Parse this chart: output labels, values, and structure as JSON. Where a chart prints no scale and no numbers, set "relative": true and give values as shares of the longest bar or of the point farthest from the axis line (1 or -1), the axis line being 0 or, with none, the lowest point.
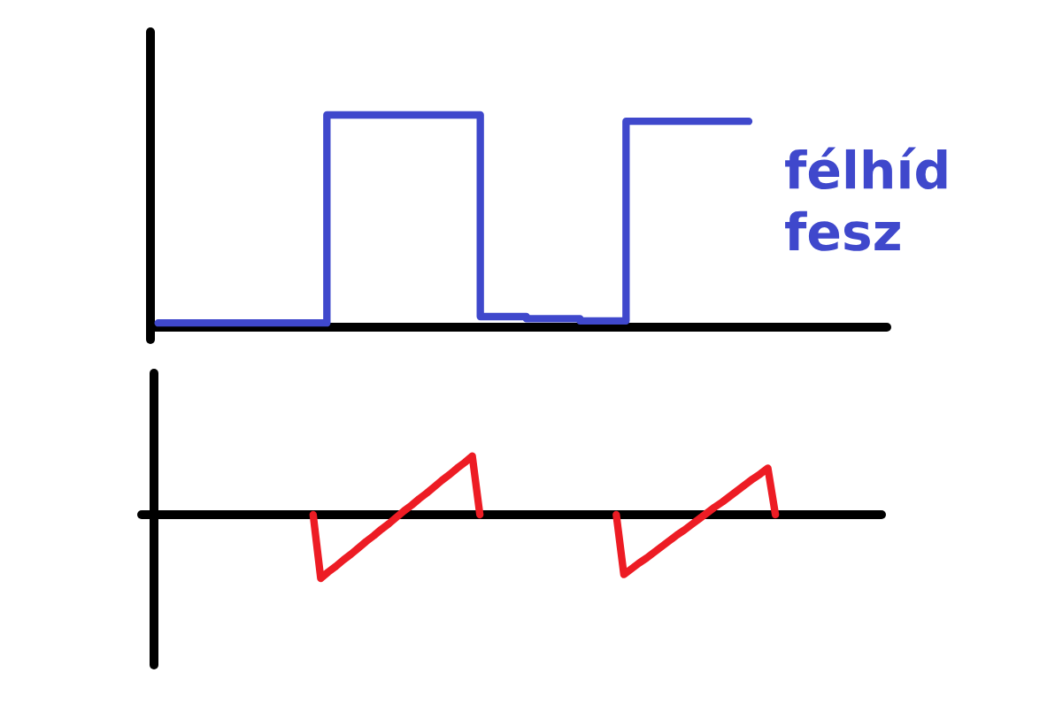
{
  "chart_data": [
    {
      "type": "step",
      "relative": true,
      "categories": [
        null,
        null,
        null,
        null,
        null,
        null,
        null,
        null,
        null,
        null,
        null,
        null,
        null,
        null,
        null,
        null,
        null,
        null,
        null,
        null,
        null,
        null,
        null,
        null,
        null,
        null,
        null,
        null,
        null,
        null,
        null,
        null,
        null,
        null,
        null,
        null,
        null,
        null,
        null,
        null,
        null,
        null,
        null,
        null,
        null,
        null,
        null,
        null,
        null,
        null,
        null,
        null,
        null,
        null,
        null,
        null,
        null,
        null,
        null,
        null,
        null,
        null,
        null,
        null,
        null,
        null,
        null,
        null,
        null,
        null,
        null,
        null,
        null,
        null,
        null,
        null,
        null,
        null,
        null,
        null,
        null,
        null,
        null,
        null,
        null,
        null,
        null,
        null,
        null,
        null,
        null,
        null,
        null,
        null,
        null,
        null,
        null
      ],
      "series": [
        {
          "name": "félhíd\nfesz",
          "color": "#3f48cc",
          "values": [
            null,
            0.02,
            0.02,
            0.02,
            0.02,
            0.02,
            0.02,
            0.02,
            0.02,
            0.02,
            0.02,
            0.02,
            0.02,
            0.02,
            0.02,
            0.02,
            0.02,
            0.02,
            0.02,
            0.02,
            0.02,
            0.02,
            0.02,
            1,
            1,
            1,
            1,
            1,
            1,
            1,
            1,
            1,
            1,
            1,
            1,
            1,
            1,
            1,
            1,
            1,
            1,
            1,
            1,
            0.05,
            0.05,
            0.05,
            0.05,
            0.05,
            0.05,
            0.04,
            0.04,
            0.04,
            0.04,
            0.04,
            0.04,
            0.04,
            0.03,
            0.03,
            0.03,
            0.03,
            0.03,
            0.03,
            0.97,
            0.97,
            0.97,
            0.97,
            0.97,
            0.97,
            0.97,
            0.97,
            0.97,
            0.97,
            0.97,
            0.97,
            0.97,
            0.97,
            0.97,
            0.97,
            null,
            null,
            null,
            null,
            null,
            null,
            null,
            null,
            null,
            null,
            null,
            null,
            null,
            null,
            null,
            null,
            null,
            null,
            null
          ]
        }
      ]
    },
    {
      "type": "line",
      "relative": true,
      "categories": [
        null,
        null,
        null,
        null,
        null,
        null,
        null,
        null,
        null,
        null,
        null,
        null,
        null,
        null,
        null,
        null,
        null,
        null,
        null,
        null,
        null,
        null,
        null,
        null,
        null,
        null,
        null,
        null,
        null,
        null,
        null,
        null,
        null,
        null,
        null,
        null,
        null,
        null,
        null,
        null,
        null,
        null,
        null,
        null,
        null,
        null,
        null,
        null,
        null,
        null,
        null,
        null,
        null,
        null,
        null,
        null,
        null,
        null,
        null,
        null,
        null,
        null,
        null,
        null,
        null,
        null,
        null,
        null,
        null,
        null,
        null,
        null,
        null,
        null,
        null,
        null,
        null,
        null,
        null,
        null,
        null,
        null,
        null,
        null,
        null,
        null,
        null,
        null,
        null,
        null,
        null,
        null,
        null,
        null,
        null,
        null,
        null
      ],
      "series": [
        {
          "color": "#ed1c24",
          "values": [
            null,
            null,
            null,
            null,
            null,
            null,
            null,
            null,
            null,
            null,
            null,
            null,
            null,
            null,
            null,
            null,
            null,
            null,
            null,
            null,
            null,
            0,
            -1,
            -0.9,
            -0.81,
            -0.71,
            -0.62,
            -0.52,
            -0.42,
            -0.33,
            -0.23,
            -0.14,
            -0.04,
            0.06,
            0.15,
            0.25,
            0.34,
            0.44,
            0.54,
            0.63,
            0.73,
            0.82,
            0.92,
            0,
            null,
            null,
            null,
            null,
            null,
            null,
            null,
            null,
            null,
            null,
            null,
            null,
            null,
            null,
            null,
            null,
            null,
            null,
            null,
            null,
            null,
            null,
            null,
            null,
            null,
            null,
            null,
            null,
            null,
            null,
            null,
            null,
            null,
            null,
            null,
            null,
            null,
            null,
            null,
            null,
            null,
            null,
            null,
            null,
            null,
            null,
            null,
            null,
            null,
            null,
            null,
            null,
            null
          ]
        },
        {
          "color": "#ed1c24",
          "values": [
            null,
            null,
            null,
            null,
            null,
            null,
            null,
            null,
            null,
            null,
            null,
            null,
            null,
            null,
            null,
            null,
            null,
            null,
            null,
            null,
            null,
            null,
            null,
            null,
            null,
            null,
            null,
            null,
            null,
            null,
            null,
            null,
            null,
            null,
            null,
            null,
            null,
            null,
            null,
            null,
            null,
            null,
            null,
            null,
            null,
            null,
            null,
            null,
            null,
            null,
            null,
            null,
            null,
            null,
            null,
            null,
            null,
            null,
            null,
            null,
            null,
            0,
            -0.94,
            -0.85,
            -0.76,
            -0.68,
            -0.59,
            -0.5,
            -0.41,
            -0.32,
            -0.24,
            -0.15,
            -0.06,
            0.03,
            0.12,
            0.2,
            0.29,
            0.38,
            0.47,
            0.56,
            0.64,
            0.73,
            0,
            null,
            null,
            null,
            null,
            null,
            null,
            null,
            null,
            null,
            null,
            null,
            null,
            null,
            null
          ]
        }
      ]
    }
  ]
}
